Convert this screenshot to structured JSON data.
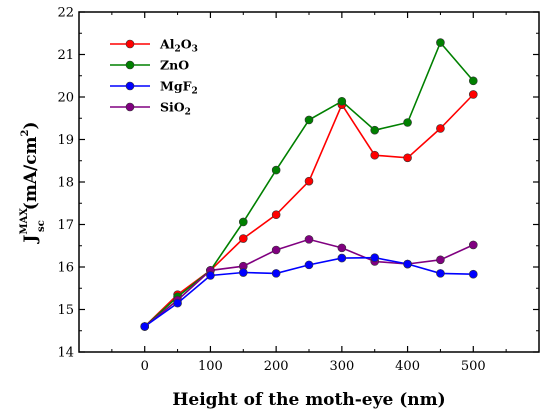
{
  "chart_data": {
    "type": "line",
    "x": [
      0,
      50,
      100,
      150,
      200,
      250,
      300,
      350,
      400,
      450,
      500
    ],
    "series": [
      {
        "name": "Al₂O₃",
        "name_base": "Al",
        "name_sub1": "2",
        "name_mid": "O",
        "name_sub2": "3",
        "color": "#ff0000",
        "values": [
          14.6,
          15.35,
          15.92,
          16.67,
          17.23,
          18.02,
          19.82,
          18.63,
          18.57,
          19.26,
          20.06
        ]
      },
      {
        "name": "ZnO",
        "name_base": "ZnO",
        "name_sub1": "",
        "name_mid": "",
        "name_sub2": "",
        "color": "#008000",
        "values": [
          14.6,
          15.3,
          15.92,
          17.06,
          18.28,
          19.46,
          19.9,
          19.22,
          19.4,
          21.28,
          20.38
        ]
      },
      {
        "name": "MgF₂",
        "name_base": "MgF",
        "name_sub1": "2",
        "name_mid": "",
        "name_sub2": "",
        "color": "#0000ff",
        "values": [
          14.6,
          15.15,
          15.8,
          15.87,
          15.85,
          16.05,
          16.21,
          16.22,
          16.07,
          15.85,
          15.83
        ]
      },
      {
        "name": "SiO₂",
        "name_base": "SiO",
        "name_sub1": "2",
        "name_mid": "",
        "name_sub2": "",
        "color": "#800080",
        "values": [
          14.6,
          15.22,
          15.92,
          16.02,
          16.4,
          16.65,
          16.45,
          16.13,
          16.07,
          16.17,
          16.52
        ]
      }
    ],
    "xlabel": "Height of the moth-eye (nm)",
    "ylabel": {
      "main": "J",
      "superscript": "MAX",
      "subscript": "sc",
      "unit_open": "(mA/cm",
      "unit_power": "2",
      "unit_close": ")"
    },
    "xlim": [
      -100,
      600
    ],
    "ylim": [
      14,
      22
    ],
    "xticks": [
      0,
      100,
      200,
      300,
      400,
      500
    ],
    "xticks_minor": [
      -50,
      50,
      150,
      250,
      350,
      450,
      550
    ],
    "yticks": [
      14,
      15,
      16,
      17,
      18,
      19,
      20,
      21,
      22
    ],
    "yticks_minor": [
      14.5,
      15.5,
      16.5,
      17.5,
      18.5,
      19.5,
      20.5,
      21.5
    ],
    "grid": false,
    "legend_position": "top-left"
  }
}
